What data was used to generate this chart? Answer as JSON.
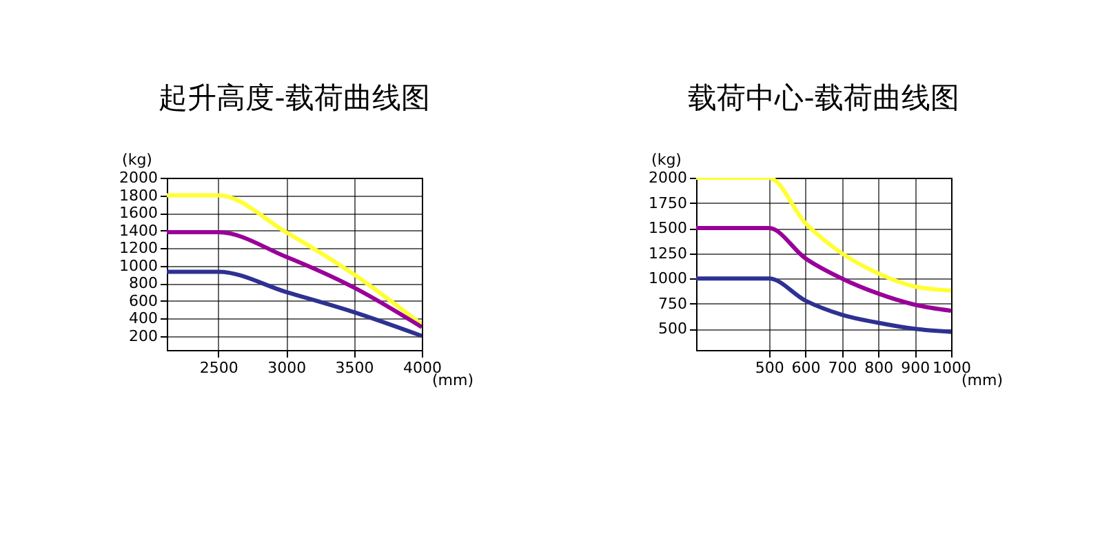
{
  "chart_data": [
    {
      "type": "line",
      "title": "起升高度-载荷曲线图",
      "xlabel": "(mm)",
      "ylabel": "(kg)",
      "xlim": [
        2120,
        4000
      ],
      "ylim": [
        40,
        2000
      ],
      "xticks": [
        2500,
        3000,
        3500,
        4000
      ],
      "yticks": [
        200,
        400,
        600,
        800,
        1000,
        1200,
        1400,
        1600,
        1800,
        2000
      ],
      "grid": true,
      "line_style": "solid",
      "series": [
        {
          "color": "#ffff33",
          "x": [
            2120,
            2500,
            3000,
            3500,
            4000
          ],
          "values": [
            1800,
            1800,
            1380,
            900,
            330
          ]
        },
        {
          "color": "#990099",
          "x": [
            2120,
            2500,
            3000,
            3500,
            4000
          ],
          "values": [
            1380,
            1380,
            1100,
            750,
            300
          ]
        },
        {
          "color": "#2e3192",
          "x": [
            2120,
            2500,
            3000,
            3500,
            4000
          ],
          "values": [
            930,
            930,
            700,
            470,
            200
          ]
        }
      ]
    },
    {
      "type": "line",
      "title": "载荷中心-载荷曲线图",
      "xlabel": "(mm)",
      "ylabel": "(kg)",
      "xlim": [
        300,
        1000
      ],
      "ylim": [
        290,
        2000
      ],
      "xticks": [
        500,
        600,
        700,
        800,
        900,
        1000
      ],
      "yticks": [
        500,
        750,
        1000,
        1250,
        1500,
        1750,
        2000
      ],
      "grid": true,
      "line_style": "solid",
      "series": [
        {
          "color": "#ffff33",
          "x": [
            300,
            500,
            600,
            700,
            800,
            900,
            1000
          ],
          "values": [
            2000,
            2000,
            1550,
            1250,
            1050,
            920,
            880
          ]
        },
        {
          "color": "#990099",
          "x": [
            300,
            500,
            600,
            700,
            800,
            900,
            1000
          ],
          "values": [
            1500,
            1500,
            1200,
            1000,
            850,
            740,
            680
          ]
        },
        {
          "color": "#2e3192",
          "x": [
            300,
            500,
            600,
            700,
            800,
            900,
            1000
          ],
          "values": [
            1000,
            1000,
            780,
            640,
            560,
            500,
            470
          ]
        }
      ]
    }
  ]
}
